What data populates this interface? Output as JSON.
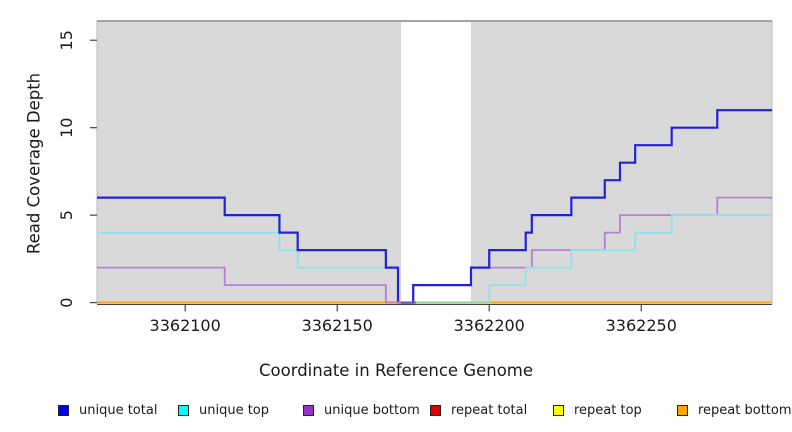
{
  "chart_data": {
    "type": "line",
    "subtype": "step-coverage",
    "title": "",
    "xlabel": "Coordinate in Reference Genome",
    "ylabel": "Read Coverage Depth",
    "xlim": [
      3362071,
      3362293
    ],
    "ylim": [
      0,
      16.1
    ],
    "x_ticks": [
      "3362100",
      "3362150",
      "3362200",
      "3362250"
    ],
    "x_tick_values": [
      3362100,
      3362150,
      3362200,
      3362250
    ],
    "y_ticks": [
      "0",
      "5",
      "10",
      "15"
    ],
    "y_tick_values": [
      0,
      5,
      10,
      15
    ],
    "plot_bg": "#d9d9d9",
    "grid": false,
    "gap_region": {
      "start": 3362171,
      "end": 3362194,
      "fill": "#ffffff",
      "top_marker_color": "#8a8a8a"
    },
    "series": [
      {
        "name": "repeat total",
        "color": "#e00000",
        "width": 1.5,
        "points": [
          [
            3362071,
            0
          ],
          [
            3362293,
            0
          ]
        ]
      },
      {
        "name": "repeat top",
        "color": "#ffff00",
        "width": 1.5,
        "points": [
          [
            3362071,
            0
          ],
          [
            3362293,
            0
          ]
        ]
      },
      {
        "name": "repeat bottom",
        "color": "#ffa500",
        "width": 2,
        "points": [
          [
            3362071,
            0
          ],
          [
            3362293,
            0
          ]
        ]
      },
      {
        "name": "unique bottom",
        "color": "#b67fd6",
        "width": 1.8,
        "points": [
          [
            3362071,
            2
          ],
          [
            3362113,
            1
          ],
          [
            3362166,
            0
          ],
          [
            3362175,
            1
          ],
          [
            3362194,
            2
          ],
          [
            3362214,
            3
          ],
          [
            3362238,
            4
          ],
          [
            3362243,
            5
          ],
          [
            3362275,
            6
          ],
          [
            3362293,
            6
          ]
        ]
      },
      {
        "name": "unique top",
        "color": "#8ce4ea",
        "width": 1.8,
        "points": [
          [
            3362071,
            4
          ],
          [
            3362131,
            3
          ],
          [
            3362137,
            2
          ],
          [
            3362170,
            0
          ],
          [
            3362200,
            1
          ],
          [
            3362212,
            2
          ],
          [
            3362227,
            3
          ],
          [
            3362248,
            4
          ],
          [
            3362260,
            5
          ],
          [
            3362293,
            5
          ]
        ]
      },
      {
        "name": "unique total",
        "color": "#2222dd",
        "width": 2.2,
        "points": [
          [
            3362071,
            6
          ],
          [
            3362113,
            5
          ],
          [
            3362131,
            4
          ],
          [
            3362137,
            3
          ],
          [
            3362166,
            2
          ],
          [
            3362170,
            0
          ],
          [
            3362175,
            1
          ],
          [
            3362194,
            2
          ],
          [
            3362200,
            3
          ],
          [
            3362212,
            4
          ],
          [
            3362214,
            5
          ],
          [
            3362227,
            6
          ],
          [
            3362238,
            7
          ],
          [
            3362243,
            8
          ],
          [
            3362248,
            9
          ],
          [
            3362260,
            10
          ],
          [
            3362275,
            11
          ],
          [
            3362293,
            11
          ]
        ]
      }
    ],
    "zero_line_overlap_segments": [
      {
        "start": 3362166,
        "end": 3362171,
        "color": "#cf8677"
      },
      {
        "start": 3362171,
        "end": 3362176,
        "color": "#6a52c4"
      },
      {
        "start": 3362176,
        "end": 3362200,
        "color": "#8fd492"
      }
    ],
    "legend_position": "bottom"
  },
  "legend": {
    "items": [
      {
        "label": "unique total",
        "color": "#0000ee"
      },
      {
        "label": "unique top",
        "color": "#00ffff"
      },
      {
        "label": "unique bottom",
        "color": "#9932cc"
      },
      {
        "label": "repeat total",
        "color": "#e00000"
      },
      {
        "label": "repeat top",
        "color": "#ffff00"
      },
      {
        "label": "repeat bottom",
        "color": "#ffa500"
      }
    ]
  }
}
